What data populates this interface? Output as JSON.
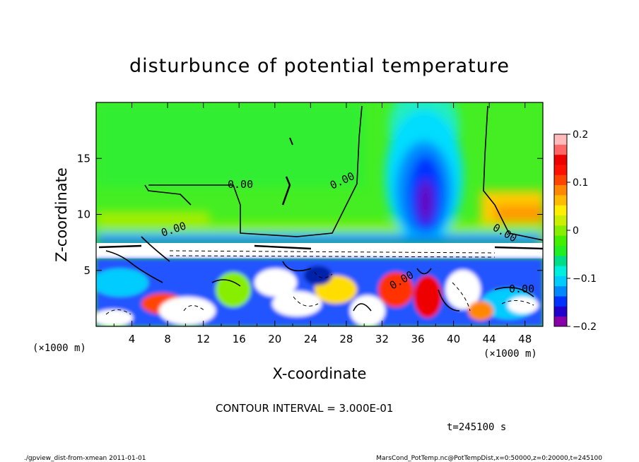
{
  "chart_data": {
    "type": "heatmap",
    "title": "disturbunce of potential temperature",
    "xlabel": "X-coordinate",
    "ylabel": "Z-coordinate",
    "x_unit_label_left": "(×1000 m)",
    "x_unit_label_right": "(×1000 m)",
    "xlim": [
      0,
      50
    ],
    "ylim": [
      0,
      20
    ],
    "x_ticks": [
      4,
      8,
      12,
      16,
      20,
      24,
      28,
      32,
      36,
      40,
      44,
      48
    ],
    "y_ticks": [
      5,
      10,
      15
    ],
    "colorbar": {
      "range": [
        -0.2,
        0.2
      ],
      "tick_values": [
        0.2,
        0.1,
        0,
        -0.1,
        -0.2
      ],
      "tick_labels": [
        "0.2",
        "0.1",
        "0",
        "−0.1",
        "−0.2"
      ],
      "colors": [
        "#8800aa",
        "#2200cc",
        "#0033ff",
        "#0088ff",
        "#00ccff",
        "#00eedd",
        "#00dd88",
        "#22ee22",
        "#44ee00",
        "#88ee00",
        "#ccee00",
        "#ffee00",
        "#ffbb00",
        "#ff8800",
        "#ff4400",
        "#ff1100",
        "#ee0000",
        "#ff6666",
        "#ffbbbb"
      ]
    },
    "contour_labels": [
      "0.00",
      "0.00",
      "0.00",
      "0.00",
      "0.00",
      "0.00"
    ],
    "contour_interval_text": "CONTOUR INTERVAL = 3.000E-01",
    "time_text": "t=245100 s",
    "footer_left": "./gpview_dist-from-xmean  2011-01-01",
    "footer_right": "MarsCond_PotTemp.nc@PotTempDist,x=0:50000,z=0:20000,t=245100",
    "grid": false
  }
}
